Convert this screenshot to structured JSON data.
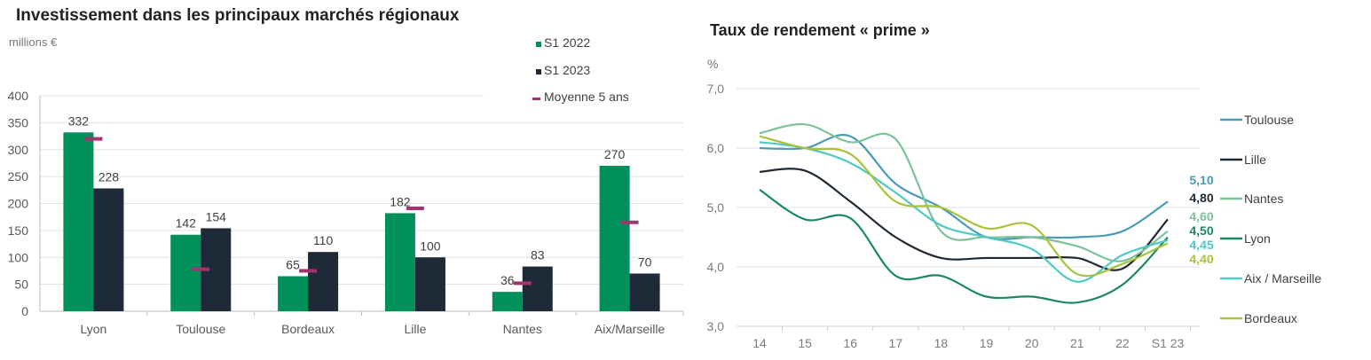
{
  "chart_data": [
    {
      "type": "bar",
      "title": "Investissement dans les principaux marchés régionaux",
      "ylabel": "millions €",
      "ylim": [
        0,
        400
      ],
      "yticks": [
        0,
        50,
        100,
        150,
        200,
        250,
        300,
        350,
        400
      ],
      "grid": true,
      "legend_placement": "top-right",
      "categories": [
        "Lyon",
        "Toulouse",
        "Bordeaux",
        "Lille",
        "Nantes",
        "Aix/Marseille"
      ],
      "series": [
        {
          "name": "S1 2022",
          "color": "#00915a",
          "values": [
            332,
            142,
            65,
            182,
            36,
            270
          ]
        },
        {
          "name": "S1 2023",
          "color": "#1e2a38",
          "values": [
            228,
            154,
            110,
            100,
            83,
            70
          ]
        }
      ],
      "markers": {
        "name": "Moyenne 5 ans",
        "color": "#a3336e",
        "values": [
          320,
          78,
          75,
          191,
          52,
          165
        ]
      }
    },
    {
      "type": "line",
      "title": "Taux de rendement « prime »",
      "ylabel": "%",
      "ylim": [
        3.0,
        7.0
      ],
      "yticks": [
        "3,0",
        "4,0",
        "5,0",
        "6,0",
        "7,0"
      ],
      "grid": true,
      "legend_placement": "right",
      "x": [
        "14",
        "15",
        "16",
        "17",
        "18",
        "19",
        "20",
        "21",
        "22",
        "S1 23"
      ],
      "series": [
        {
          "name": "Toulouse",
          "color": "#4a9bb5",
          "end_label": "5,10",
          "values": [
            6.0,
            6.0,
            6.2,
            5.4,
            5.0,
            4.5,
            4.5,
            4.5,
            4.6,
            5.1
          ]
        },
        {
          "name": "Lille",
          "color": "#1f2a36",
          "end_label": "4,80",
          "values": [
            5.6,
            5.62,
            5.1,
            4.5,
            4.15,
            4.15,
            4.15,
            4.15,
            3.97,
            4.8
          ]
        },
        {
          "name": "Nantes",
          "color": "#7cc39a",
          "end_label": "4,60",
          "values": [
            6.25,
            6.4,
            6.1,
            6.15,
            4.6,
            4.5,
            4.5,
            4.35,
            4.1,
            4.6
          ]
        },
        {
          "name": "Lyon",
          "color": "#1a8a5e",
          "end_label": "4,50",
          "values": [
            5.3,
            4.8,
            4.82,
            3.85,
            3.85,
            3.5,
            3.5,
            3.4,
            3.7,
            4.5
          ]
        },
        {
          "name": "Aix / Marseille",
          "color": "#4fc9c4",
          "end_label": "4,45",
          "values": [
            6.1,
            6.0,
            5.75,
            5.25,
            4.7,
            4.5,
            4.3,
            3.75,
            4.2,
            4.45
          ]
        },
        {
          "name": "Bordeaux",
          "color": "#a8c23a",
          "end_label": "4,40",
          "values": [
            6.2,
            6.0,
            5.9,
            5.1,
            5.0,
            4.65,
            4.7,
            3.88,
            4.05,
            4.4
          ]
        }
      ]
    }
  ]
}
